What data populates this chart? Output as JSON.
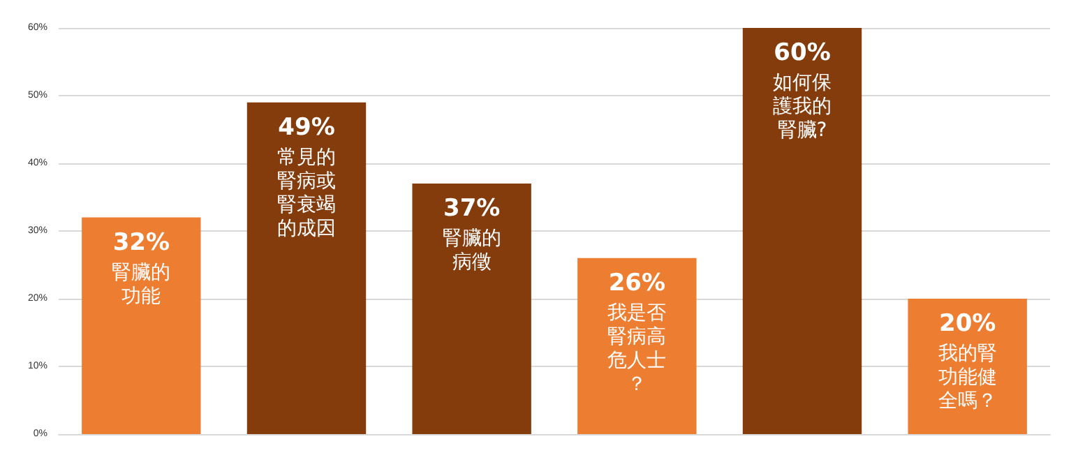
{
  "chart_data": {
    "type": "bar",
    "categories": [
      "腎臟的功能",
      "常見的腎病或腎衰竭的成因",
      "腎臟的病徵",
      "我是否腎病高危人士？",
      "如何保護我的腎臟?",
      "我的腎功能健全嗎？"
    ],
    "values": [
      32,
      49,
      37,
      26,
      60,
      20
    ],
    "value_labels": [
      "32%",
      "49%",
      "37%",
      "26%",
      "60%",
      "20%"
    ],
    "colors": [
      "#ed7d31",
      "#843c0c",
      "#843c0c",
      "#ed7d31",
      "#843c0c",
      "#ed7d31"
    ],
    "ylim": [
      0,
      60
    ],
    "yticks": [
      {
        "value": 0,
        "label": "0%"
      },
      {
        "value": 10,
        "label": "10%"
      },
      {
        "value": 20,
        "label": "20%"
      },
      {
        "value": 30,
        "label": "30%"
      },
      {
        "value": 40,
        "label": "40%"
      },
      {
        "value": 50,
        "label": "50%"
      },
      {
        "value": 60,
        "label": "60%"
      }
    ],
    "grid": "y",
    "tick_labels": "y"
  }
}
